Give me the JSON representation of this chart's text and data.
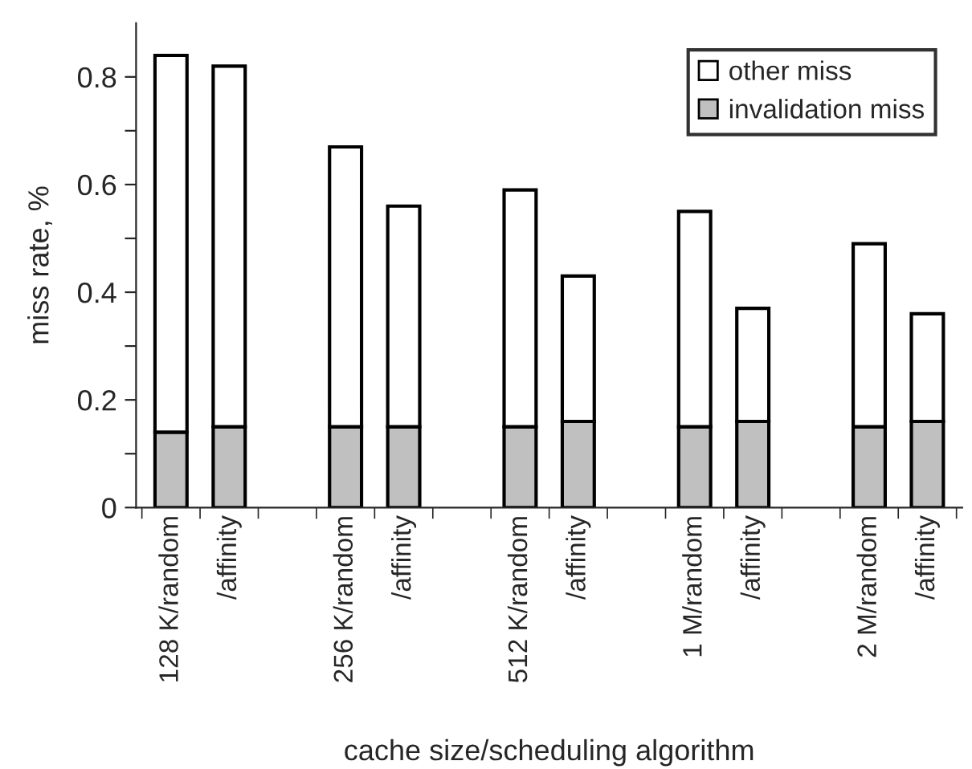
{
  "chart_data": {
    "type": "bar",
    "stacked": true,
    "xlabel": "cache size/scheduling algorithm",
    "ylabel": "miss rate, %",
    "categories": [
      "128 K/random",
      "/affinity",
      null,
      "256 K/random",
      "/affinity",
      null,
      "512 K/random",
      "/affinity",
      null,
      "1 M/random",
      "/affinity",
      null,
      "2 M/random",
      "/affinity"
    ],
    "series": [
      {
        "name": "invalidation miss",
        "color": "#c0c0c0",
        "values": [
          0.14,
          0.15,
          null,
          0.15,
          0.15,
          null,
          0.15,
          0.16,
          null,
          0.15,
          0.16,
          null,
          0.15,
          0.16
        ]
      },
      {
        "name": "other miss",
        "color": "#ffffff",
        "values": [
          0.7,
          0.67,
          null,
          0.52,
          0.41,
          null,
          0.44,
          0.27,
          null,
          0.4,
          0.21,
          null,
          0.34,
          0.2
        ]
      }
    ],
    "ylim": [
      0,
      0.9
    ],
    "yticks": [
      0,
      {
        "value": 0.1,
        "label": null
      },
      0.2,
      {
        "value": 0.3,
        "label": null
      },
      0.4,
      {
        "value": 0.5,
        "label": null
      },
      0.6,
      {
        "value": 0.7,
        "label": null
      },
      0.8
    ],
    "grid": false,
    "legend": "top right"
  }
}
